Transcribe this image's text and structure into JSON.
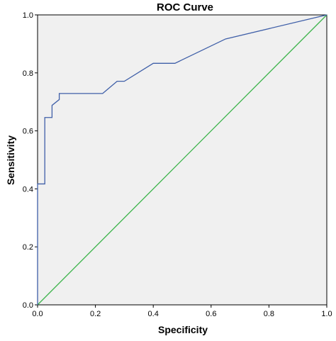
{
  "chart_data": {
    "type": "line",
    "title": "ROC Curve",
    "xlabel": "Specificity",
    "ylabel": "Sensitivity",
    "xlim": [
      0,
      1
    ],
    "ylim": [
      0,
      1
    ],
    "x_ticks": [
      "0.0",
      "0.2",
      "0.4",
      "0.6",
      "0.8",
      "1.0"
    ],
    "y_ticks": [
      "0.0",
      "0.2",
      "0.4",
      "0.6",
      "0.8",
      "1.0"
    ],
    "grid": false,
    "series": [
      {
        "color": "#3f5fa8",
        "points": [
          [
            0.0,
            0.0
          ],
          [
            0.0,
            0.417
          ],
          [
            0.025,
            0.417
          ],
          [
            0.025,
            0.646
          ],
          [
            0.05,
            0.646
          ],
          [
            0.05,
            0.688
          ],
          [
            0.075,
            0.708
          ],
          [
            0.075,
            0.729
          ],
          [
            0.225,
            0.729
          ],
          [
            0.275,
            0.771
          ],
          [
            0.3,
            0.771
          ],
          [
            0.4,
            0.833
          ],
          [
            0.475,
            0.833
          ],
          [
            0.65,
            0.917
          ],
          [
            1.0,
            1.0
          ]
        ]
      },
      {
        "color": "#3cb44b",
        "points": [
          [
            0.0,
            0.0
          ],
          [
            1.0,
            1.0
          ]
        ]
      }
    ],
    "plot_background": "#f0f0f0"
  }
}
